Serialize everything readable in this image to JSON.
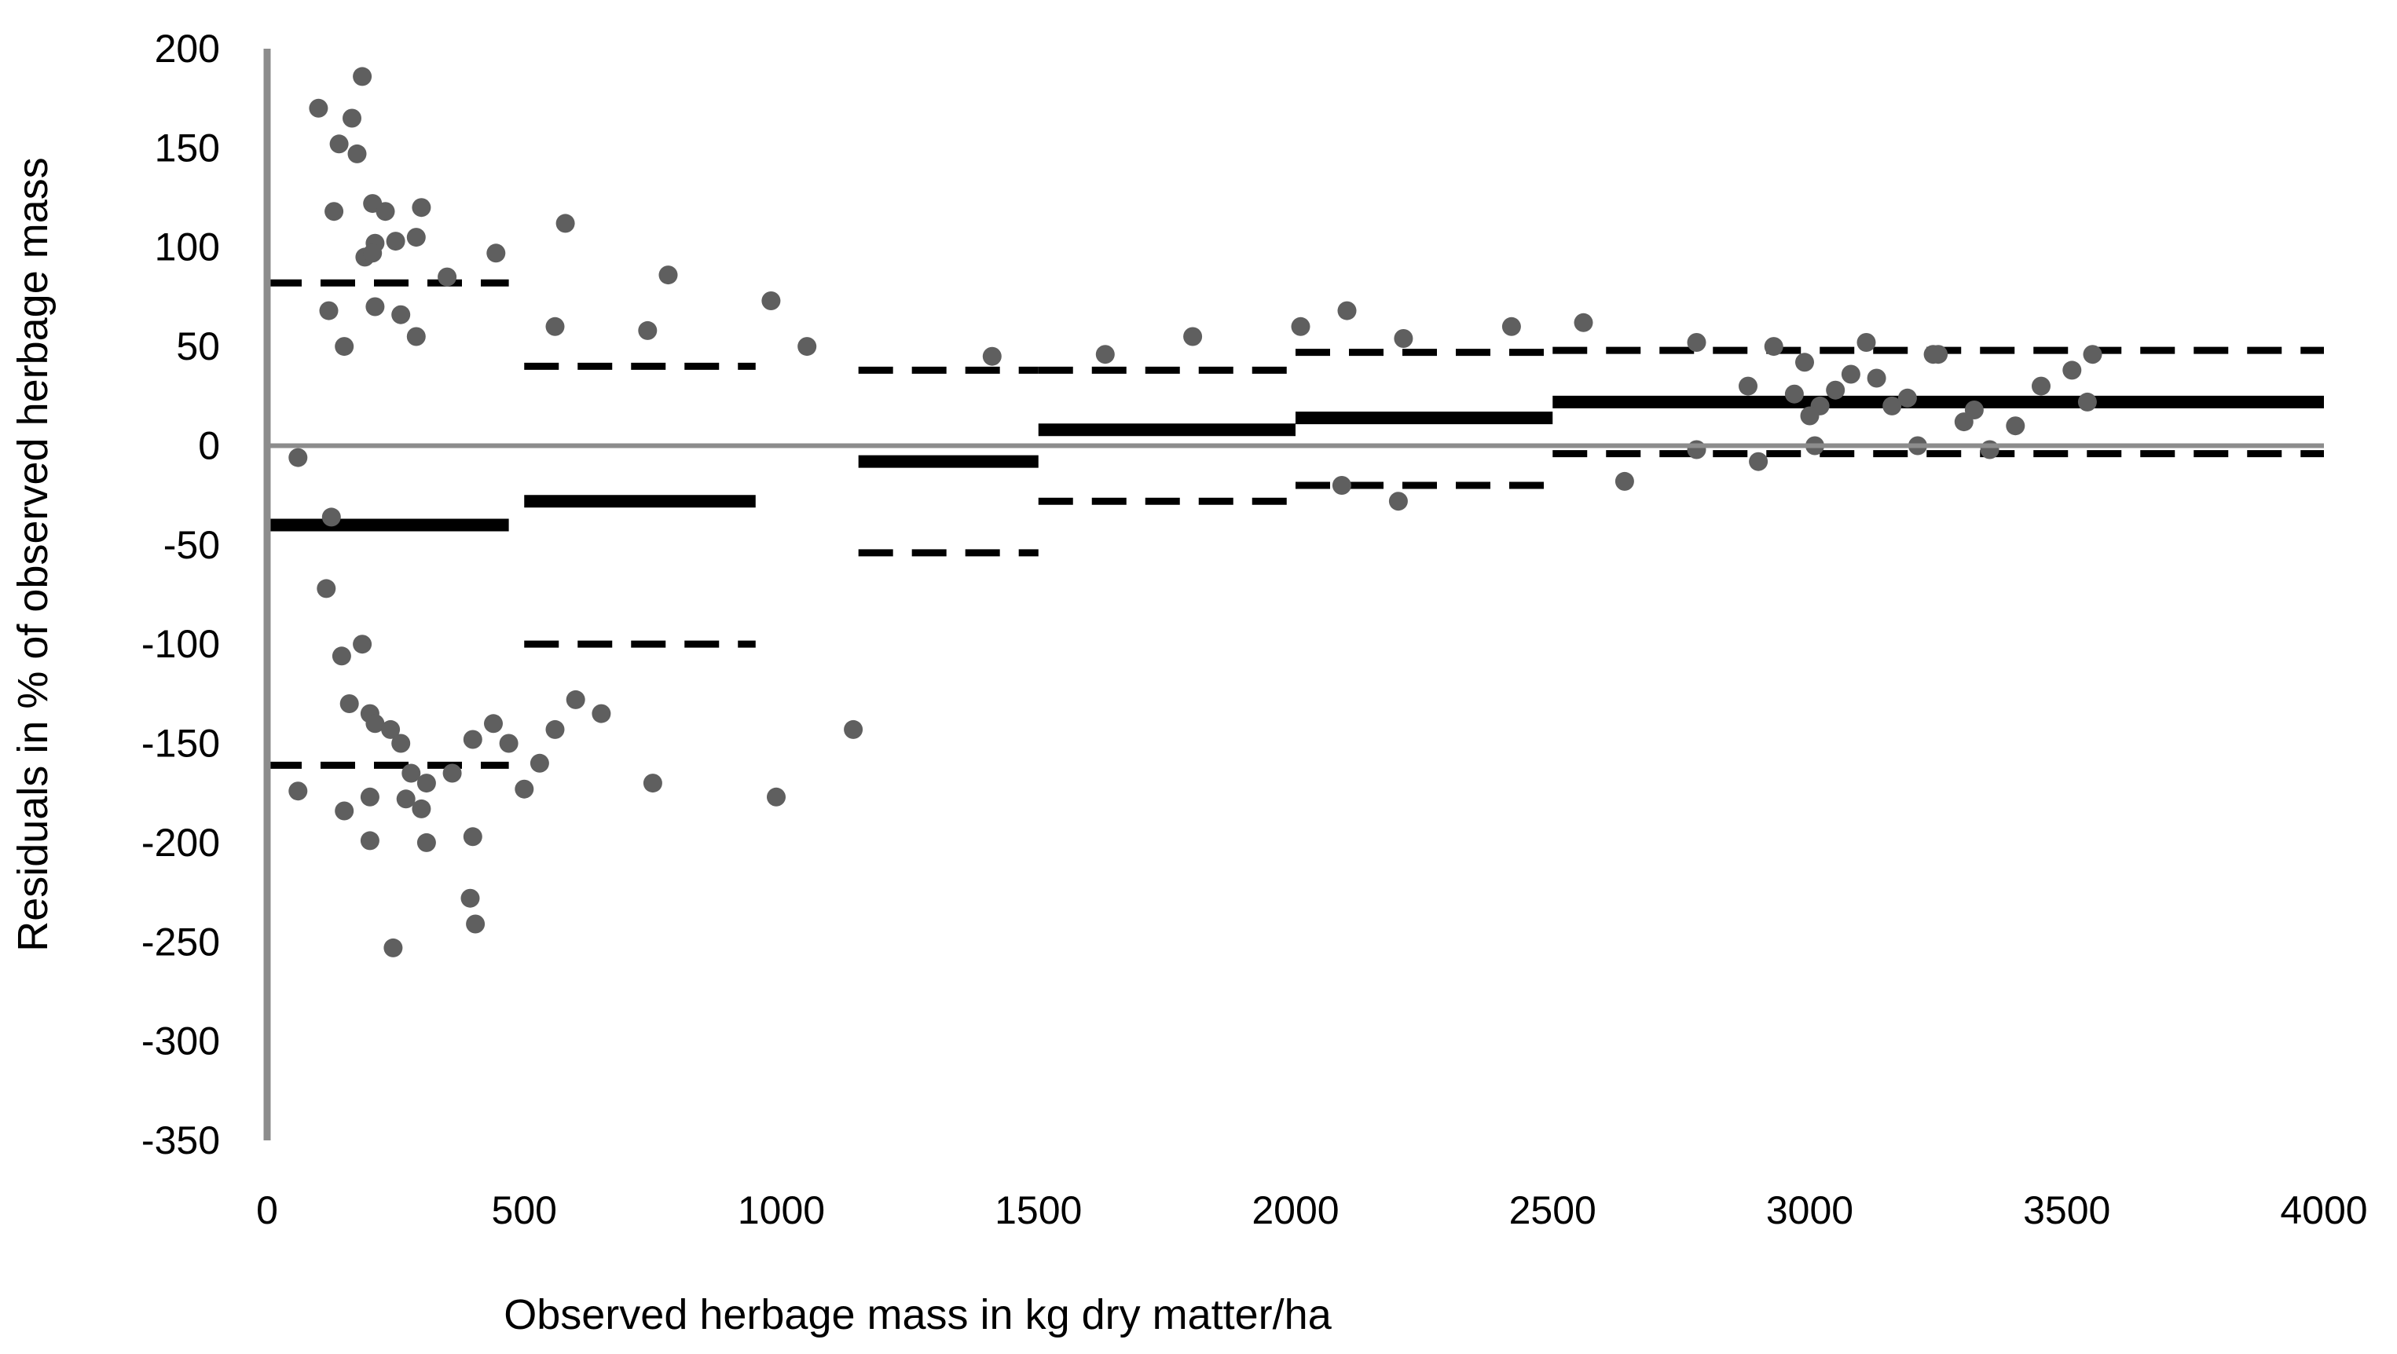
{
  "chart_data": {
    "type": "scatter",
    "title": "",
    "xlabel": "Observed herbage mass in kg dry matter/ha",
    "ylabel": "Residuals in % of observed herbage mass",
    "xlim": [
      0,
      4000
    ],
    "ylim": [
      -350,
      200
    ],
    "x_ticks": [
      "0",
      "500",
      "1000",
      "1500",
      "2000",
      "2500",
      "3000",
      "3500",
      "4000"
    ],
    "y_ticks": [
      "200",
      "150",
      "100",
      "50",
      "0",
      "-50",
      "-100",
      "-150",
      "-200",
      "-250",
      "-300",
      "-350"
    ],
    "grid": false,
    "legend": "none",
    "colors": {
      "points": "#5f5f5f",
      "axis": "#8c8c8c",
      "bias_line": "#000000",
      "limit_line": "#000000"
    },
    "binned_lines": [
      {
        "x_start": 0,
        "x_end": 470,
        "mean": -40,
        "upper": 82,
        "lower": -161
      },
      {
        "x_start": 500,
        "x_end": 950,
        "mean": -28,
        "upper": 40,
        "lower": -100
      },
      {
        "x_start": 1150,
        "x_end": 1500,
        "mean": -8,
        "upper": 38,
        "lower": -54
      },
      {
        "x_start": 1500,
        "x_end": 2000,
        "mean": 8,
        "upper": 38,
        "lower": -28
      },
      {
        "x_start": 2000,
        "x_end": 2500,
        "mean": 14,
        "upper": 47,
        "lower": -20
      },
      {
        "x_start": 2500,
        "x_end": 4000,
        "mean": 22,
        "upper": 48,
        "lower": -4
      }
    ],
    "series": [
      {
        "points": [
          [
            100,
            170
          ],
          [
            140,
            152
          ],
          [
            165,
            165
          ],
          [
            175,
            147
          ],
          [
            185,
            186
          ],
          [
            130,
            118
          ],
          [
            205,
            122
          ],
          [
            230,
            118
          ],
          [
            300,
            120
          ],
          [
            210,
            102
          ],
          [
            290,
            105
          ],
          [
            250,
            103
          ],
          [
            190,
            95
          ],
          [
            205,
            97
          ],
          [
            350,
            85
          ],
          [
            445,
            97
          ],
          [
            580,
            112
          ],
          [
            780,
            86
          ],
          [
            980,
            73
          ],
          [
            2100,
            68
          ],
          [
            2010,
            60
          ],
          [
            2420,
            60
          ],
          [
            2560,
            62
          ],
          [
            120,
            68
          ],
          [
            150,
            50
          ],
          [
            210,
            70
          ],
          [
            260,
            66
          ],
          [
            290,
            55
          ],
          [
            560,
            60
          ],
          [
            740,
            58
          ],
          [
            1050,
            50
          ],
          [
            1410,
            45
          ],
          [
            1630,
            46
          ],
          [
            1800,
            55
          ],
          [
            2210,
            54
          ],
          [
            2930,
            50
          ],
          [
            3110,
            52
          ],
          [
            3550,
            46
          ],
          [
            3250,
            46
          ],
          [
            2780,
            52
          ],
          [
            60,
            -6
          ],
          [
            125,
            -36
          ],
          [
            115,
            -72
          ],
          [
            145,
            -106
          ],
          [
            160,
            -130
          ],
          [
            200,
            -135
          ],
          [
            185,
            -100
          ],
          [
            210,
            -140
          ],
          [
            240,
            -143
          ],
          [
            260,
            -150
          ],
          [
            280,
            -165
          ],
          [
            310,
            -170
          ],
          [
            360,
            -165
          ],
          [
            400,
            -148
          ],
          [
            440,
            -140
          ],
          [
            470,
            -150
          ],
          [
            500,
            -173
          ],
          [
            530,
            -160
          ],
          [
            560,
            -143
          ],
          [
            600,
            -128
          ],
          [
            650,
            -135
          ],
          [
            750,
            -170
          ],
          [
            990,
            -177
          ],
          [
            1140,
            -143
          ],
          [
            60,
            -174
          ],
          [
            150,
            -184
          ],
          [
            200,
            -177
          ],
          [
            200,
            -199
          ],
          [
            245,
            -253
          ],
          [
            270,
            -178
          ],
          [
            310,
            -200
          ],
          [
            300,
            -183
          ],
          [
            400,
            -197
          ],
          [
            395,
            -228
          ],
          [
            405,
            -241
          ],
          [
            2200,
            -28
          ],
          [
            2090,
            -20
          ],
          [
            2640,
            -18
          ],
          [
            2780,
            -2
          ],
          [
            2900,
            -8
          ],
          [
            3010,
            0
          ],
          [
            3210,
            0
          ],
          [
            3350,
            -2
          ],
          [
            3400,
            10
          ],
          [
            3450,
            30
          ],
          [
            3320,
            18
          ],
          [
            3160,
            20
          ],
          [
            3020,
            20
          ],
          [
            2970,
            26
          ],
          [
            2880,
            30
          ],
          [
            3080,
            36
          ],
          [
            3240,
            46
          ],
          [
            3300,
            12
          ],
          [
            3000,
            15
          ],
          [
            3050,
            28
          ],
          [
            3130,
            34
          ],
          [
            3510,
            38
          ],
          [
            3540,
            22
          ],
          [
            2990,
            42
          ],
          [
            3190,
            24
          ]
        ]
      }
    ]
  }
}
